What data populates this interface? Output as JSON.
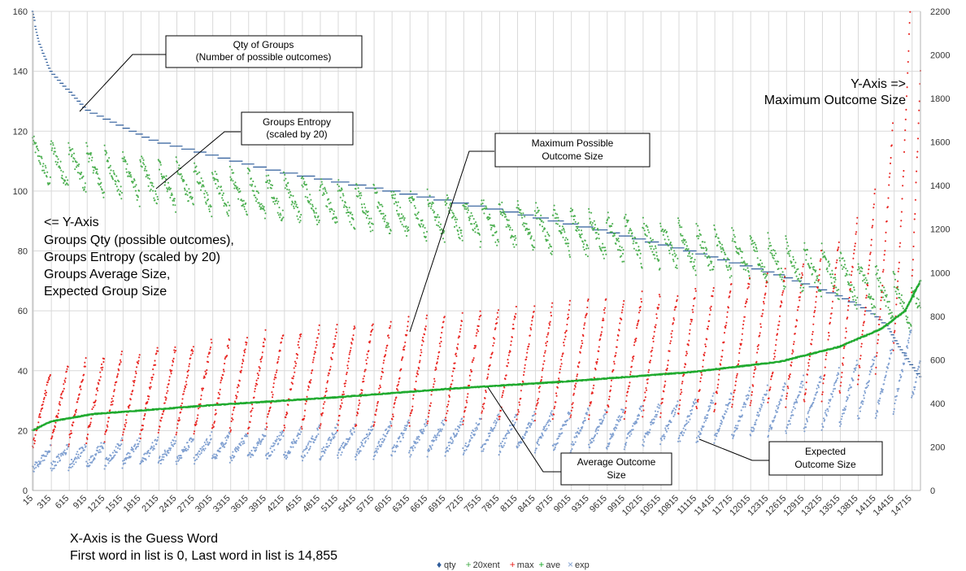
{
  "chart_data": {
    "type": "scatter",
    "x_range": [
      0,
      14855
    ],
    "x_ticks": [
      "15",
      "315",
      "615",
      "915",
      "1215",
      "1515",
      "1815",
      "2115",
      "2415",
      "2715",
      "3015",
      "3315",
      "3615",
      "3915",
      "4215",
      "4515",
      "4815",
      "5115",
      "5415",
      "5715",
      "6015",
      "6315",
      "6615",
      "6915",
      "7215",
      "7515",
      "7815",
      "8115",
      "8415",
      "8715",
      "9015",
      "9315",
      "9615",
      "9915",
      "10215",
      "10515",
      "10815",
      "11115",
      "11415",
      "11715",
      "12015",
      "12315",
      "12615",
      "12915",
      "13215",
      "13515",
      "13815",
      "14115",
      "14415",
      "14715"
    ],
    "y_left": {
      "range": [
        0,
        160
      ],
      "ticks": [
        "0",
        "20",
        "40",
        "60",
        "80",
        "100",
        "120",
        "140",
        "160"
      ]
    },
    "y_right": {
      "range": [
        0,
        2200
      ],
      "ticks": [
        "0",
        "200",
        "400",
        "600",
        "800",
        "1000",
        "1200",
        "1400",
        "1600",
        "1800",
        "2000",
        "2200"
      ]
    },
    "grid": true,
    "legend_position": "bottom",
    "series": [
      {
        "name": "qty",
        "axis": "left",
        "color": "#2f5d9b",
        "marker": "diamond",
        "trend": [
          [
            0,
            160
          ],
          [
            100,
            150
          ],
          [
            300,
            140
          ],
          [
            915,
            127
          ],
          [
            2000,
            117
          ],
          [
            4000,
            107
          ],
          [
            6000,
            100
          ],
          [
            8000,
            93
          ],
          [
            9500,
            87
          ],
          [
            11000,
            80
          ],
          [
            12500,
            72
          ],
          [
            13500,
            65
          ],
          [
            14000,
            60
          ],
          [
            14300,
            55
          ],
          [
            14500,
            48
          ],
          [
            14700,
            42
          ],
          [
            14855,
            38
          ]
        ]
      },
      {
        "name": "20xent",
        "axis": "left",
        "color": "#4caf50",
        "marker": "cross",
        "trend": [
          [
            0,
            110
          ],
          [
            1000,
            107
          ],
          [
            2000,
            103
          ],
          [
            4000,
            98
          ],
          [
            6000,
            93
          ],
          [
            8000,
            89
          ],
          [
            10000,
            84
          ],
          [
            12000,
            78
          ],
          [
            13500,
            72
          ],
          [
            14200,
            66
          ],
          [
            14855,
            60
          ]
        ]
      },
      {
        "name": "max",
        "axis": "right",
        "color": "#e8231f",
        "marker": "cross",
        "trend": [
          [
            0,
            360
          ],
          [
            1000,
            420
          ],
          [
            3000,
            480
          ],
          [
            5000,
            520
          ],
          [
            7000,
            560
          ],
          [
            9000,
            600
          ],
          [
            11000,
            640
          ],
          [
            13000,
            720
          ],
          [
            14000,
            900
          ],
          [
            14500,
            1250
          ],
          [
            14855,
            1900
          ]
        ]
      },
      {
        "name": "ave",
        "axis": "left",
        "color": "#1faa2e",
        "marker": "cross",
        "trend": [
          [
            0,
            20
          ],
          [
            300,
            23
          ],
          [
            1000,
            25.5
          ],
          [
            3000,
            28.5
          ],
          [
            5000,
            31
          ],
          [
            7000,
            34
          ],
          [
            9000,
            36.5
          ],
          [
            11000,
            39.5
          ],
          [
            12500,
            43
          ],
          [
            13500,
            48
          ],
          [
            14200,
            54
          ],
          [
            14600,
            60
          ],
          [
            14855,
            70
          ]
        ]
      },
      {
        "name": "exp",
        "axis": "left",
        "color": "#7f9fd0",
        "marker": "x",
        "trend": [
          [
            0,
            10
          ],
          [
            1000,
            12
          ],
          [
            3000,
            14
          ],
          [
            5000,
            16
          ],
          [
            7000,
            18
          ],
          [
            9000,
            20
          ],
          [
            11000,
            23
          ],
          [
            12500,
            27
          ],
          [
            13500,
            31
          ],
          [
            14200,
            36
          ],
          [
            14855,
            44
          ]
        ]
      }
    ],
    "annotations": [
      {
        "lines": [
          "Qty of Groups",
          "(Number of possible outcomes)"
        ]
      },
      {
        "lines": [
          "Groups Entropy",
          "(scaled by 20)"
        ]
      },
      {
        "lines": [
          "Maximum Possible",
          "Outcome Size"
        ]
      },
      {
        "lines": [
          "Average Outcome",
          "Size"
        ]
      },
      {
        "lines": [
          "Expected",
          "Outcome Size"
        ]
      }
    ],
    "notes": {
      "right_axis": [
        "Y-Axis =>",
        "Maximum Outcome Size"
      ],
      "left_axis": [
        "<= Y-Axis",
        "Groups Qty (possible outcomes),",
        "Groups Entropy (scaled by 20)",
        "Groups Average Size,",
        "Expected Group Size"
      ],
      "x_axis": [
        "X-Axis is the Guess Word",
        "First word in list is 0, Last word in list is 14,855"
      ]
    }
  }
}
